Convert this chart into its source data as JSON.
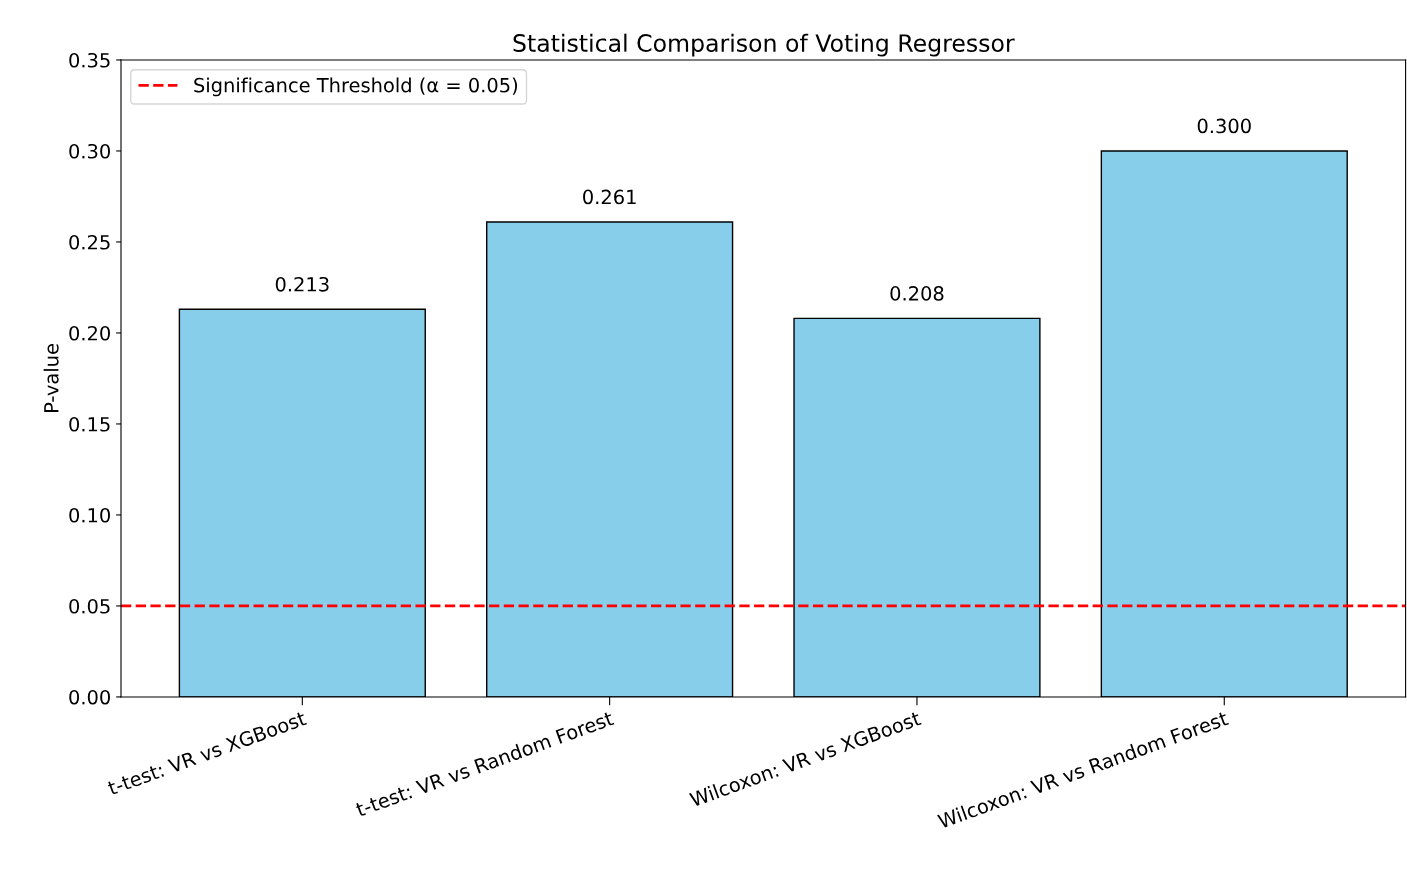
{
  "chart_data": {
    "type": "bar",
    "title": "Statistical Comparison of Voting Regressor",
    "ylabel": "P-value",
    "categories": [
      "t-test: VR vs XGBoost",
      "t-test: VR vs Random Forest",
      "Wilcoxon: VR vs XGBoost",
      "Wilcoxon: VR vs Random Forest"
    ],
    "values": [
      0.213,
      0.261,
      0.208,
      0.3
    ],
    "color": "#87ceeb",
    "data_labels": true,
    "value_labels": [
      "0.213",
      "0.261",
      "0.208",
      "0.300"
    ],
    "ylim": [
      0,
      0.35
    ],
    "yticks": [
      {
        "value": 0,
        "label": "0.00"
      },
      {
        "value": 0.05,
        "label": "0.05"
      },
      {
        "value": 0.1,
        "label": "0.10"
      },
      {
        "value": 0.15,
        "label": "0.15"
      },
      {
        "value": 0.2,
        "label": "0.20"
      },
      {
        "value": 0.25,
        "label": "0.25"
      },
      {
        "value": 0.3,
        "label": "0.30"
      },
      {
        "value": 0.35,
        "label": "0.35"
      }
    ],
    "ref_lines": [
      {
        "axis": "y",
        "value": 0.05,
        "label": "Significance Threshold (α = 0.05)",
        "color": "#ff0000",
        "line_style": "dashed"
      }
    ],
    "legend": "top left",
    "grid": false
  }
}
